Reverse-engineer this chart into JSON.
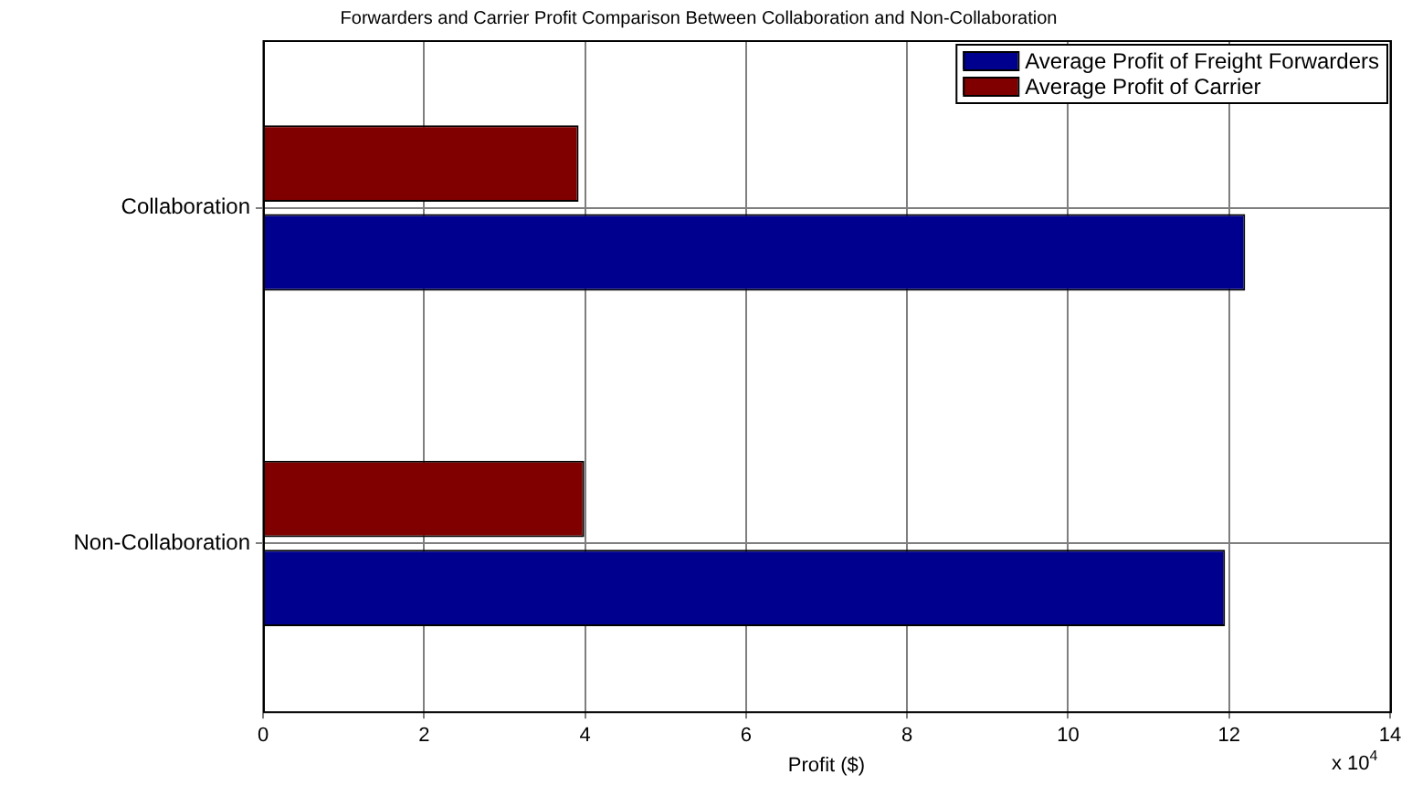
{
  "chart_data": {
    "type": "bar",
    "orientation": "horizontal",
    "title": "Forwarders and Carrier Profit Comparison Between Collaboration and Non-Collaboration",
    "xlabel": "Profit ($)",
    "categories": [
      "Collaboration",
      "Non-Collaboration"
    ],
    "series": [
      {
        "name": "Average Profit of Freight Forwarders",
        "color": "#00008f",
        "values": [
          12.2,
          11.95
        ]
      },
      {
        "name": "Average Profit of Carrier",
        "color": "#800000",
        "values": [
          3.92,
          3.99
        ]
      }
    ],
    "xlim": [
      0,
      14
    ],
    "xticks": [
      0,
      2,
      4,
      6,
      8,
      10,
      12,
      14
    ],
    "grid": true,
    "legend": "top right",
    "annotations": [
      "x 10$^{4}$"
    ]
  }
}
